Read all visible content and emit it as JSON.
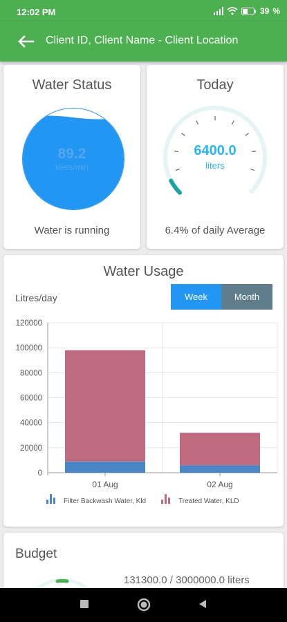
{
  "status_bar": {
    "time": "12:02 PM",
    "battery": "39"
  },
  "header": {
    "title": "Client ID, Client Name - Client Location"
  },
  "water_status": {
    "title": "Water Status",
    "value": "89.2",
    "unit": "liters/min",
    "caption": "Water is running",
    "fill_fraction": 0.9
  },
  "today": {
    "title": "Today",
    "value": "6400.0",
    "unit": "liters",
    "caption": "6.4% of daily Average",
    "gauge_fraction": 0.064
  },
  "usage": {
    "title": "Water Usage",
    "ylabel": "Litres/day",
    "week_label": "Week",
    "month_label": "Month"
  },
  "chart_data": {
    "type": "bar",
    "stacked": true,
    "categories": [
      "01 Aug",
      "02 Aug"
    ],
    "series": [
      {
        "name": "Filter Backwash Water, Kld",
        "color": "#4a86c5",
        "values": [
          9000,
          6000
        ]
      },
      {
        "name": "Treated Water, KLD",
        "color": "#bf6a7f",
        "values": [
          89000,
          26000
        ]
      }
    ],
    "ylim": [
      0,
      120000
    ],
    "yticks": [
      0,
      20000,
      40000,
      60000,
      80000,
      100000,
      120000
    ],
    "grid": true,
    "legend": "bottom"
  },
  "budget": {
    "title": "Budget",
    "value": "131300.0 / 3000000.0 liters"
  }
}
